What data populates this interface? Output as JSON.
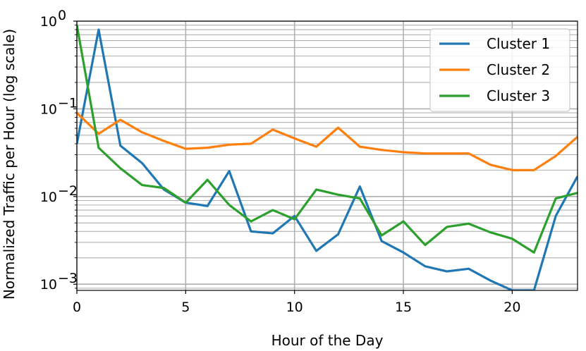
{
  "chart_data": {
    "type": "line",
    "xlabel": "Hour of the Day",
    "ylabel": "Normalized Traffic per Hour (log scale)",
    "yscale": "log",
    "xlim": [
      0,
      23
    ],
    "ylim": [
      0.00085,
      1.0
    ],
    "x_ticks": [
      0,
      5,
      10,
      15,
      20
    ],
    "y_ticks": [
      {
        "value": 0.001,
        "base": "10",
        "exp": "−3"
      },
      {
        "value": 0.01,
        "base": "10",
        "exp": "−2"
      },
      {
        "value": 0.1,
        "base": "10",
        "exp": "−1"
      },
      {
        "value": 1,
        "base": "10",
        "exp": "0"
      }
    ],
    "grid": true,
    "legend_position": "top-right",
    "x": [
      0,
      1,
      2,
      3,
      4,
      5,
      6,
      7,
      8,
      9,
      10,
      11,
      12,
      13,
      14,
      15,
      16,
      17,
      18,
      19,
      20,
      21,
      22,
      23
    ],
    "series": [
      {
        "name": "Cluster 1",
        "color": "#1f77b4",
        "values": [
          0.04,
          0.8,
          0.038,
          0.024,
          0.012,
          0.0085,
          0.0078,
          0.0195,
          0.004,
          0.0038,
          0.006,
          0.0024,
          0.0037,
          0.013,
          0.0031,
          0.0023,
          0.0016,
          0.0014,
          0.0015,
          0.0011,
          0.00085,
          0.00085,
          0.006,
          0.017
        ]
      },
      {
        "name": "Cluster 2",
        "color": "#ff7f0e",
        "values": [
          0.09,
          0.052,
          0.075,
          0.054,
          0.043,
          0.035,
          0.036,
          0.039,
          0.04,
          0.058,
          0.046,
          0.037,
          0.061,
          0.037,
          0.034,
          0.032,
          0.031,
          0.031,
          0.031,
          0.023,
          0.02,
          0.02,
          0.029,
          0.048
        ]
      },
      {
        "name": "Cluster 3",
        "color": "#2ca02c",
        "values": [
          0.9,
          0.036,
          0.021,
          0.0135,
          0.0125,
          0.0085,
          0.0155,
          0.008,
          0.0052,
          0.007,
          0.0055,
          0.012,
          0.0105,
          0.0095,
          0.0036,
          0.0052,
          0.0028,
          0.0045,
          0.0049,
          0.0039,
          0.0033,
          0.0023,
          0.0095,
          0.011
        ]
      }
    ]
  }
}
